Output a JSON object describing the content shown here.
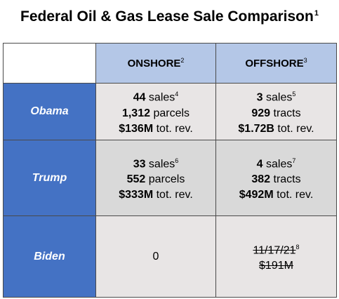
{
  "title": {
    "text": "Federal Oil & Gas Lease Sale Comparison",
    "note": "1"
  },
  "columns": [
    {
      "label": "ONSHORE",
      "note": "2"
    },
    {
      "label": "OFFSHORE",
      "note": "3"
    }
  ],
  "rows": [
    {
      "label": "Obama",
      "onshore": {
        "sales": "44",
        "sales_unit": " sales",
        "sales_note": "4",
        "parcels": "1,312",
        "parcels_unit": " parcels",
        "rev": "$136M",
        "rev_unit": " tot. rev."
      },
      "offshore": {
        "sales": "3",
        "sales_unit": " sales",
        "sales_note": "5",
        "tracts": "929",
        "tracts_unit": " tracts",
        "rev": "$1.72B",
        "rev_unit": " tot. rev."
      }
    },
    {
      "label": "Trump",
      "onshore": {
        "sales": "33",
        "sales_unit": " sales",
        "sales_note": "6",
        "parcels": "552",
        "parcels_unit": " parcels",
        "rev": "$333M",
        "rev_unit": " tot. rev."
      },
      "offshore": {
        "sales": "4",
        "sales_unit": " sales",
        "sales_note": "7",
        "tracts": "382",
        "tracts_unit": " tracts",
        "rev": "$492M",
        "rev_unit": " tot. rev."
      }
    },
    {
      "label": "Biden",
      "onshore": {
        "value": "0"
      },
      "offshore": {
        "date": "11/17/21",
        "date_note": "8",
        "rev": "$191M"
      }
    }
  ]
}
